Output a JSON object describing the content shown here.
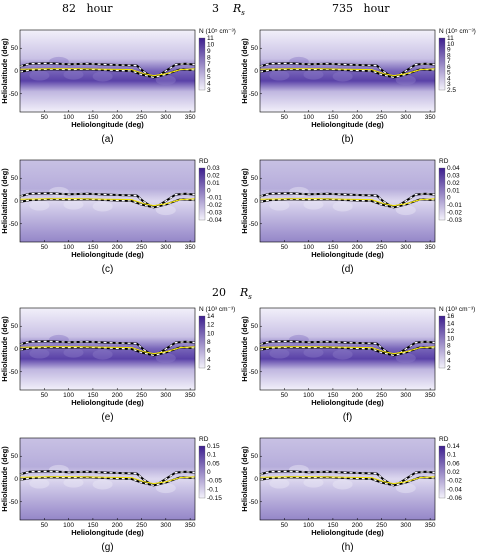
{
  "headers": {
    "top_left": {
      "value": "82",
      "unit": "hour"
    },
    "top_mid": {
      "value": "3",
      "unit": "R",
      "sub": "s"
    },
    "top_right": {
      "value": "735",
      "unit": "hour"
    },
    "mid_center": {
      "value": "20",
      "unit": "R",
      "sub": "s"
    }
  },
  "axes": {
    "xlabel": "Heliolongitude (deg)",
    "ylabel": "Heliolatitude (deg)",
    "xticks": [
      "50",
      "100",
      "150",
      "200",
      "250",
      "300",
      "350"
    ],
    "yticks": [
      "50",
      "0",
      "-50"
    ]
  },
  "chart_data": [
    {
      "id": "a",
      "caption": "(a)",
      "type": "heatmap",
      "legend_title": "N (10⁵ cm⁻³)",
      "legend_ticks": [
        "11",
        "10",
        "9",
        "8",
        "7",
        "6",
        "5",
        "4",
        "3"
      ],
      "colormap": "density",
      "xlim": [
        0,
        360
      ],
      "ylim": [
        -90,
        90
      ]
    },
    {
      "id": "b",
      "caption": "(b)",
      "type": "heatmap",
      "legend_title": "N (10⁵ cm⁻³)",
      "legend_ticks": [
        "11",
        "10",
        "9",
        "8",
        "7",
        "6",
        "5",
        "4",
        "3",
        "2.5"
      ],
      "colormap": "density",
      "xlim": [
        0,
        360
      ],
      "ylim": [
        -90,
        90
      ]
    },
    {
      "id": "c",
      "caption": "(c)",
      "type": "heatmap",
      "legend_title": "RD",
      "legend_ticks": [
        "0.03",
        "0.02",
        "0.01",
        "0",
        "-0.01",
        "-0.02",
        "-0.03",
        "-0.04"
      ],
      "colormap": "rd",
      "xlim": [
        0,
        360
      ],
      "ylim": [
        -90,
        90
      ]
    },
    {
      "id": "d",
      "caption": "(d)",
      "type": "heatmap",
      "legend_title": "RD",
      "legend_ticks": [
        "0.04",
        "0.03",
        "0.02",
        "0.01",
        "0",
        "-0.01",
        "-0.02",
        "-0.03"
      ],
      "colormap": "rd",
      "xlim": [
        0,
        360
      ],
      "ylim": [
        -90,
        90
      ]
    },
    {
      "id": "e",
      "caption": "(e)",
      "type": "heatmap",
      "legend_title": "N (10³ cm⁻³)",
      "legend_ticks": [
        "14",
        "12",
        "10",
        "8",
        "6",
        "4",
        "2"
      ],
      "colormap": "density",
      "xlim": [
        0,
        360
      ],
      "ylim": [
        -90,
        90
      ]
    },
    {
      "id": "f",
      "caption": "(f)",
      "type": "heatmap",
      "legend_title": "N (10³ cm⁻³)",
      "legend_ticks": [
        "16",
        "14",
        "12",
        "10",
        "8",
        "6",
        "4",
        "2"
      ],
      "colormap": "density",
      "xlim": [
        0,
        360
      ],
      "ylim": [
        -90,
        90
      ]
    },
    {
      "id": "g",
      "caption": "(g)",
      "type": "heatmap",
      "legend_title": "RD",
      "legend_ticks": [
        "0.15",
        "0.1",
        "0.05",
        "0",
        "-0.05",
        "-0.1",
        "-0.15"
      ],
      "colormap": "rd",
      "xlim": [
        0,
        360
      ],
      "ylim": [
        -90,
        90
      ]
    },
    {
      "id": "h",
      "caption": "(h)",
      "type": "heatmap",
      "legend_title": "RD",
      "legend_ticks": [
        "0.14",
        "0.1",
        "0.06",
        "0.02",
        "-0.02",
        "-0.04",
        "-0.06"
      ],
      "colormap": "rd",
      "xlim": [
        0,
        360
      ],
      "ylim": [
        -90,
        90
      ]
    }
  ],
  "colors": {
    "neutral_line": "#f5e600",
    "current_sheet": "#000000",
    "density_dark": "#4a2a9a",
    "density_light": "#f4f2fb"
  }
}
